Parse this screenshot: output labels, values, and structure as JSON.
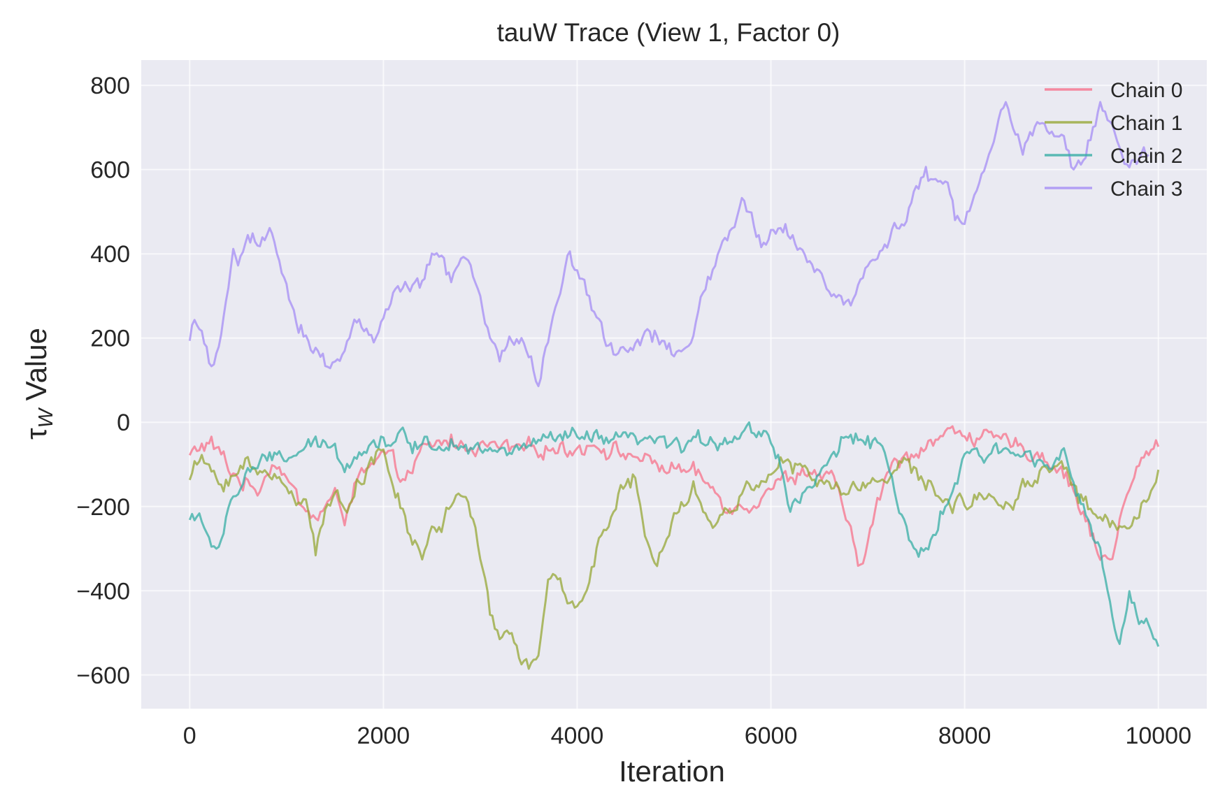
{
  "chart_data": {
    "type": "line",
    "title": "tauW Trace (View 1, Factor 0)",
    "xlabel": "Iteration",
    "ylabel": "τW Value",
    "ylabel_symbol": "τ",
    "ylabel_subscript": "W",
    "ylabel_rest": " Value",
    "xlim": [
      -500,
      10500
    ],
    "ylim": [
      -680,
      860
    ],
    "xticks": [
      0,
      2000,
      4000,
      6000,
      8000,
      10000
    ],
    "xtick_labels": [
      "0",
      "2000",
      "4000",
      "6000",
      "8000",
      "10000"
    ],
    "yticks": [
      -600,
      -400,
      -200,
      0,
      200,
      400,
      600,
      800
    ],
    "ytick_labels": [
      "−600",
      "−400",
      "−200",
      "0",
      "200",
      "400",
      "600",
      "800"
    ],
    "grid": true,
    "legend_position": "top-right",
    "series": [
      {
        "name": "Chain 0",
        "color": "#f77189",
        "x": [
          0,
          100,
          200,
          300,
          400,
          500,
          600,
          700,
          800,
          900,
          1000,
          1100,
          1200,
          1300,
          1400,
          1500,
          1600,
          1700,
          1800,
          1900,
          2000,
          2100,
          2200,
          2300,
          2400,
          2500,
          2600,
          2700,
          2800,
          2900,
          3000,
          3200,
          3400,
          3600,
          3800,
          4000,
          4200,
          4400,
          4600,
          4800,
          5000,
          5200,
          5400,
          5600,
          5800,
          6000,
          6200,
          6400,
          6600,
          6700,
          6800,
          6900,
          7000,
          7100,
          7200,
          7400,
          7600,
          7800,
          8000,
          8200,
          8400,
          8600,
          8800,
          9000,
          9100,
          9200,
          9300,
          9400,
          9500,
          9600,
          9700,
          9800,
          9900,
          10000
        ],
        "y": [
          -80,
          -60,
          -50,
          -70,
          -110,
          -130,
          -150,
          -160,
          -110,
          -90,
          -130,
          -180,
          -210,
          -230,
          -200,
          -180,
          -220,
          -150,
          -120,
          -110,
          -80,
          -100,
          -130,
          -120,
          -70,
          -60,
          -50,
          -40,
          -60,
          -50,
          -60,
          -60,
          -70,
          -60,
          -60,
          -60,
          -50,
          -70,
          -80,
          -100,
          -110,
          -120,
          -160,
          -200,
          -190,
          -150,
          -130,
          -110,
          -140,
          -160,
          -250,
          -350,
          -280,
          -200,
          -120,
          -80,
          -50,
          -30,
          -20,
          -40,
          -50,
          -60,
          -80,
          -110,
          -150,
          -200,
          -260,
          -320,
          -330,
          -240,
          -160,
          -110,
          -70,
          -50
        ]
      },
      {
        "name": "Chain 1",
        "color": "#96a736",
        "x": [
          0,
          100,
          200,
          300,
          400,
          500,
          600,
          700,
          800,
          900,
          1000,
          1100,
          1200,
          1300,
          1400,
          1500,
          1600,
          1700,
          1800,
          1900,
          2000,
          2100,
          2200,
          2300,
          2400,
          2500,
          2600,
          2700,
          2800,
          2900,
          3000,
          3100,
          3200,
          3300,
          3400,
          3500,
          3600,
          3700,
          3800,
          3900,
          4000,
          4100,
          4200,
          4300,
          4400,
          4500,
          4600,
          4700,
          4800,
          4900,
          5000,
          5200,
          5400,
          5600,
          5800,
          6000,
          6200,
          6400,
          6600,
          6800,
          7000,
          7200,
          7400,
          7600,
          7800,
          8000,
          8200,
          8400,
          8600,
          8800,
          9000,
          9200,
          9400,
          9600,
          9800,
          10000
        ],
        "y": [
          -130,
          -90,
          -110,
          -140,
          -130,
          -120,
          -100,
          -130,
          -110,
          -120,
          -160,
          -200,
          -160,
          -300,
          -220,
          -180,
          -200,
          -150,
          -120,
          -90,
          -70,
          -150,
          -220,
          -280,
          -320,
          -260,
          -240,
          -200,
          -150,
          -220,
          -330,
          -450,
          -500,
          -510,
          -540,
          -580,
          -560,
          -400,
          -370,
          -430,
          -430,
          -380,
          -300,
          -250,
          -200,
          -150,
          -130,
          -290,
          -350,
          -280,
          -200,
          -150,
          -250,
          -200,
          -150,
          -110,
          -100,
          -130,
          -150,
          -170,
          -140,
          -120,
          -100,
          -150,
          -180,
          -200,
          -160,
          -200,
          -150,
          -120,
          -90,
          -180,
          -230,
          -250,
          -200,
          -130
        ]
      },
      {
        "name": "Chain 2",
        "color": "#36ada4",
        "x": [
          0,
          50,
          100,
          150,
          200,
          250,
          300,
          350,
          400,
          500,
          600,
          700,
          800,
          900,
          1000,
          1200,
          1400,
          1600,
          1800,
          2000,
          2200,
          2400,
          2600,
          2800,
          3000,
          3200,
          3400,
          3600,
          3800,
          4000,
          4200,
          4400,
          4600,
          4800,
          5000,
          5200,
          5400,
          5600,
          5800,
          6000,
          6100,
          6200,
          6400,
          6600,
          6800,
          7000,
          7200,
          7300,
          7400,
          7500,
          7600,
          7700,
          7800,
          8000,
          8200,
          8400,
          8600,
          8800,
          9000,
          9200,
          9300,
          9400,
          9500,
          9600,
          9700,
          9800,
          9900,
          10000
        ],
        "y": [
          -230,
          -220,
          -210,
          -250,
          -300,
          -310,
          -290,
          -250,
          -200,
          -160,
          -120,
          -100,
          -100,
          -80,
          -80,
          -70,
          -50,
          -90,
          -60,
          -40,
          -40,
          -50,
          -50,
          -40,
          -60,
          -80,
          -60,
          -50,
          -40,
          -40,
          -40,
          -50,
          -40,
          -50,
          -60,
          -50,
          -40,
          -30,
          -20,
          -30,
          -100,
          -200,
          -150,
          -100,
          -30,
          -30,
          -80,
          -200,
          -270,
          -330,
          -300,
          -260,
          -200,
          -90,
          -80,
          -70,
          -70,
          -90,
          -60,
          -200,
          -250,
          -300,
          -450,
          -520,
          -430,
          -480,
          -480,
          -550
        ]
      },
      {
        "name": "Chain 3",
        "color": "#a48cf4",
        "x": [
          0,
          50,
          100,
          150,
          200,
          250,
          300,
          350,
          400,
          450,
          500,
          550,
          600,
          650,
          700,
          750,
          800,
          850,
          900,
          950,
          1000,
          1100,
          1200,
          1300,
          1400,
          1500,
          1600,
          1700,
          1800,
          1900,
          2000,
          2100,
          2200,
          2300,
          2400,
          2500,
          2600,
          2700,
          2800,
          2900,
          3000,
          3100,
          3200,
          3300,
          3400,
          3500,
          3600,
          3700,
          3800,
          3900,
          4000,
          4100,
          4200,
          4300,
          4400,
          4500,
          4600,
          4700,
          4800,
          4900,
          5000,
          5100,
          5200,
          5300,
          5400,
          5500,
          5600,
          5700,
          5800,
          5900,
          6000,
          6100,
          6200,
          6300,
          6400,
          6500,
          6600,
          6700,
          6800,
          6900,
          7000,
          7100,
          7200,
          7300,
          7400,
          7500,
          7600,
          7700,
          7800,
          7900,
          8000,
          8100,
          8200,
          8300,
          8400,
          8500,
          8600,
          8700,
          8800,
          8900,
          9000,
          9100,
          9200,
          9300,
          9400,
          9500,
          9600,
          9700,
          9800,
          9900
        ],
        "y": [
          190,
          240,
          220,
          200,
          130,
          110,
          150,
          250,
          320,
          420,
          400,
          420,
          440,
          430,
          410,
          420,
          440,
          440,
          380,
          340,
          300,
          240,
          210,
          170,
          150,
          140,
          180,
          230,
          220,
          200,
          250,
          300,
          310,
          310,
          330,
          400,
          380,
          340,
          380,
          370,
          280,
          200,
          150,
          210,
          200,
          150,
          100,
          200,
          280,
          390,
          360,
          300,
          240,
          210,
          170,
          160,
          200,
          200,
          200,
          180,
          160,
          170,
          200,
          310,
          350,
          420,
          460,
          510,
          480,
          420,
          450,
          460,
          450,
          420,
          390,
          360,
          310,
          290,
          280,
          320,
          380,
          400,
          420,
          470,
          480,
          560,
          580,
          560,
          580,
          500,
          470,
          550,
          600,
          680,
          760,
          720,
          660,
          700,
          720,
          690,
          660,
          610,
          600,
          680,
          760,
          720,
          650,
          600,
          620,
          640
        ]
      }
    ]
  }
}
